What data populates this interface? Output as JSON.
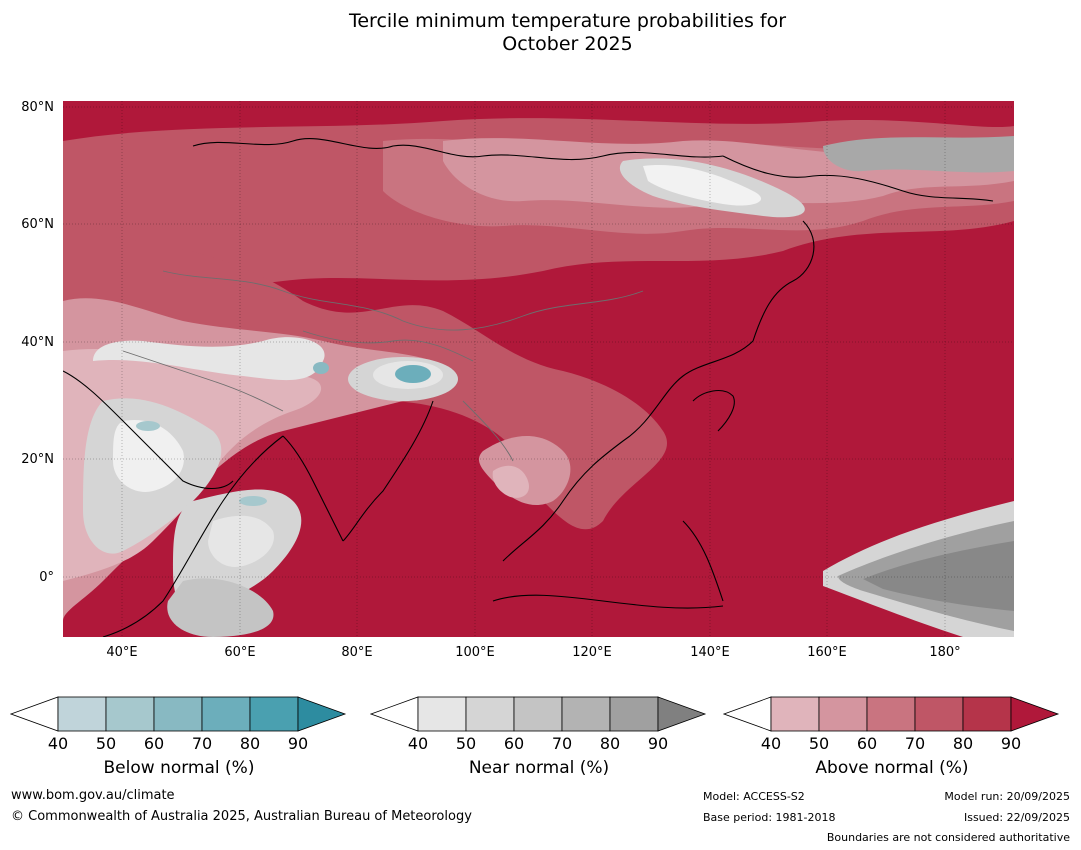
{
  "title_line1": "Tercile minimum temperature probabilities for",
  "title_line2": "October 2025",
  "map": {
    "lat_labels": [
      "80°N",
      "60°N",
      "40°N",
      "20°N",
      "0°"
    ],
    "lon_labels": [
      "40°E",
      "60°E",
      "80°E",
      "100°E",
      "120°E",
      "140°E",
      "160°E",
      "180°"
    ]
  },
  "legends": [
    {
      "label": "Below normal (%)",
      "ticks": [
        "40",
        "50",
        "60",
        "70",
        "80",
        "90"
      ],
      "colors": [
        "#ffffff",
        "#c0d4da",
        "#a6c8cd",
        "#88b9c2",
        "#6caebb",
        "#4aa0b0",
        "#2d8ca0"
      ]
    },
    {
      "label": "Near normal (%)",
      "ticks": [
        "40",
        "50",
        "60",
        "70",
        "80",
        "90"
      ],
      "colors": [
        "#ffffff",
        "#e6e6e6",
        "#d5d5d5",
        "#c4c4c4",
        "#b3b3b3",
        "#a0a0a0",
        "#808080"
      ]
    },
    {
      "label": "Above normal (%)",
      "ticks": [
        "40",
        "50",
        "60",
        "70",
        "80",
        "90"
      ],
      "colors": [
        "#ffffff",
        "#e0b4bb",
        "#d4959f",
        "#c97480",
        "#bf5666",
        "#b5344a",
        "#b0183a"
      ]
    }
  ],
  "footer": {
    "website": "www.bom.gov.au/climate",
    "copyright": "© Commonwealth of Australia 2025, Australian Bureau of Meteorology",
    "model": "Model: ACCESS-S2",
    "base_period": "Base period: 1981-2018",
    "model_run": "Model run: 20/09/2025",
    "issued": "Issued: 22/09/2025",
    "disclaimer": "Boundaries are not considered authoritative"
  }
}
